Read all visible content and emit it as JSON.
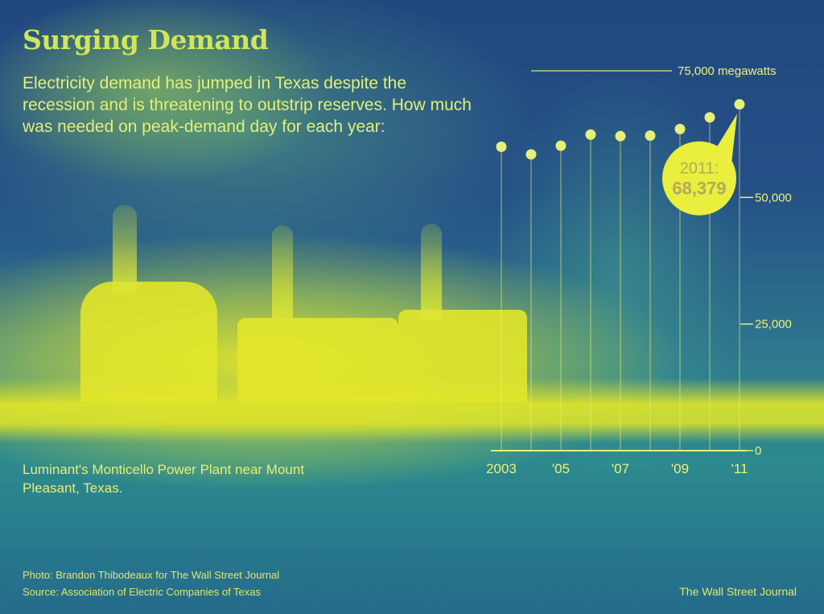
{
  "title": "Surging Demand",
  "subtitle": "Electricity demand has jumped in Texas despite the recession and is threatening to outstrip reserves. How much was needed on peak-demand day for each year:",
  "photo_caption": "Luminant's Monticello Power Plant near Mount Pleasant, Texas.",
  "credits": {
    "photo": "Photo: Brandon Thibodeaux for The Wall Street Journal",
    "source": "Source: Association of Electric Companies of Texas"
  },
  "brand": "The Wall Street Journal",
  "colors": {
    "text": "#e2f07a",
    "marker": "#e6ef78",
    "callout": "#e9ef3c",
    "callout_text": "#b7a75e"
  },
  "chart_data": {
    "type": "scatter",
    "style": "lollipop (vertical stems with dot markers)",
    "x": [
      2003,
      2004,
      2005,
      2006,
      2007,
      2008,
      2009,
      2010,
      2011
    ],
    "values": [
      60000,
      58500,
      60200,
      62400,
      62100,
      62200,
      63500,
      65800,
      68379
    ],
    "unit": "megawatts",
    "x_tick_labels": [
      {
        "x": 2003,
        "label": "2003"
      },
      {
        "x": 2005,
        "label": "'05"
      },
      {
        "x": 2007,
        "label": "'07"
      },
      {
        "x": 2009,
        "label": "'09"
      },
      {
        "x": 2011,
        "label": "'11"
      }
    ],
    "y_ticks": [
      {
        "value": 0,
        "label": "0"
      },
      {
        "value": 25000,
        "label": "25,000"
      },
      {
        "value": 50000,
        "label": "50,000"
      },
      {
        "value": 75000,
        "label": "75,000 megawatts"
      }
    ],
    "ylim": [
      0,
      75000
    ],
    "grid": false,
    "annotation": {
      "x": 2011,
      "label_year": "2011:",
      "label_value": "68,379"
    }
  }
}
